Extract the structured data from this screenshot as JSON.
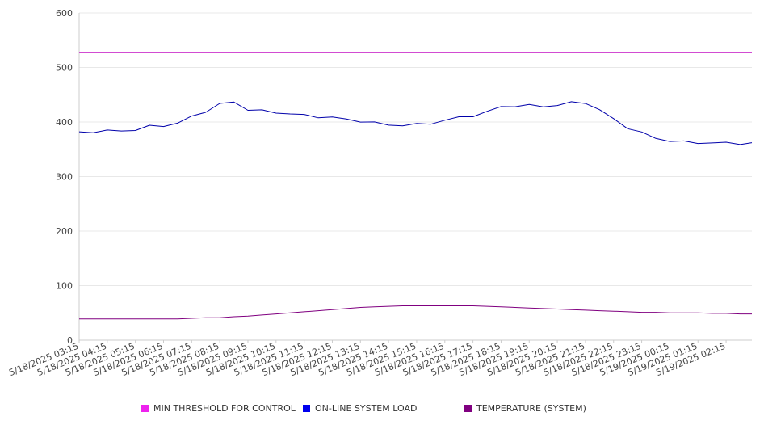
{
  "chart_data": {
    "type": "line",
    "title": "",
    "xlabel": "",
    "ylabel": "",
    "ylim": [
      0,
      600
    ],
    "yticks": [
      0,
      100,
      200,
      300,
      400,
      500,
      600
    ],
    "grid": true,
    "legend_position": "bottom",
    "x_tick_labels": [
      "5/18/2025 03:15",
      "5/18/2025 04:15",
      "5/18/2025 05:15",
      "5/18/2025 06:15",
      "5/18/2025 07:15",
      "5/18/2025 08:15",
      "5/18/2025 09:15",
      "5/18/2025 10:15",
      "5/18/2025 11:15",
      "5/18/2025 12:15",
      "5/18/2025 13:15",
      "5/18/2025 14:15",
      "5/18/2025 15:15",
      "5/18/2025 16:15",
      "5/18/2025 17:15",
      "5/18/2025 18:15",
      "5/18/2025 19:15",
      "5/18/2025 20:15",
      "5/18/2025 21:15",
      "5/18/2025 22:15",
      "5/18/2025 23:15",
      "5/19/2025 00:15",
      "5/19/2025 01:15",
      "5/19/2025 02:15"
    ],
    "x": [
      "5/18/2025 03:15",
      "5/18/2025 03:45",
      "5/18/2025 04:15",
      "5/18/2025 04:45",
      "5/18/2025 05:15",
      "5/18/2025 05:45",
      "5/18/2025 06:15",
      "5/18/2025 06:45",
      "5/18/2025 07:15",
      "5/18/2025 07:45",
      "5/18/2025 08:15",
      "5/18/2025 08:45",
      "5/18/2025 09:15",
      "5/18/2025 09:45",
      "5/18/2025 10:15",
      "5/18/2025 10:45",
      "5/18/2025 11:15",
      "5/18/2025 11:45",
      "5/18/2025 12:15",
      "5/18/2025 12:45",
      "5/18/2025 13:15",
      "5/18/2025 13:45",
      "5/18/2025 14:15",
      "5/18/2025 14:45",
      "5/18/2025 15:15",
      "5/18/2025 15:45",
      "5/18/2025 16:15",
      "5/18/2025 16:45",
      "5/18/2025 17:15",
      "5/18/2025 17:45",
      "5/18/2025 18:15",
      "5/18/2025 18:45",
      "5/18/2025 19:15",
      "5/18/2025 19:45",
      "5/18/2025 20:15",
      "5/18/2025 20:45",
      "5/18/2025 21:15",
      "5/18/2025 21:45",
      "5/18/2025 22:15",
      "5/18/2025 22:45",
      "5/18/2025 23:15",
      "5/18/2025 23:45",
      "5/19/2025 00:15",
      "5/19/2025 00:45",
      "5/19/2025 01:15",
      "5/19/2025 01:45",
      "5/19/2025 02:15",
      "5/19/2025 02:45",
      "5/19/2025 03:10"
    ],
    "series": [
      {
        "name": "MIN THRESHOLD FOR CONTROL",
        "color": "#cc33cc",
        "values": [
          528,
          528,
          528,
          528,
          528,
          528,
          528,
          528,
          528,
          528,
          528,
          528,
          528,
          528,
          528,
          528,
          528,
          528,
          528,
          528,
          528,
          528,
          528,
          528,
          528,
          528,
          528,
          528,
          528,
          528,
          528,
          528,
          528,
          528,
          528,
          528,
          528,
          528,
          528,
          528,
          528,
          528,
          528,
          528,
          528,
          528,
          528,
          528,
          528
        ]
      },
      {
        "name": "ON-LINE SYSTEM LOAD",
        "color": "#0000aa",
        "values": [
          382,
          382,
          383,
          385,
          385,
          392,
          394,
          397,
          410,
          420,
          432,
          437,
          423,
          420,
          418,
          415,
          412,
          410,
          408,
          405,
          402,
          398,
          395,
          394,
          395,
          398,
          403,
          408,
          412,
          418,
          428,
          430,
          430,
          429,
          431,
          435,
          436,
          422,
          405,
          390,
          380,
          370,
          366,
          363,
          362,
          362,
          361,
          361,
          361
        ]
      },
      {
        "name": "TEMPERATURE (SYSTEM)",
        "color": "#800080",
        "values": [
          39,
          39,
          39,
          39,
          39,
          39,
          39,
          39,
          40,
          41,
          41,
          43,
          44,
          46,
          48,
          50,
          52,
          54,
          56,
          58,
          60,
          61,
          62,
          63,
          63,
          63,
          63,
          63,
          63,
          62,
          61,
          60,
          59,
          58,
          57,
          56,
          55,
          54,
          53,
          52,
          51,
          51,
          50,
          50,
          50,
          49,
          49,
          48,
          48
        ]
      }
    ]
  }
}
